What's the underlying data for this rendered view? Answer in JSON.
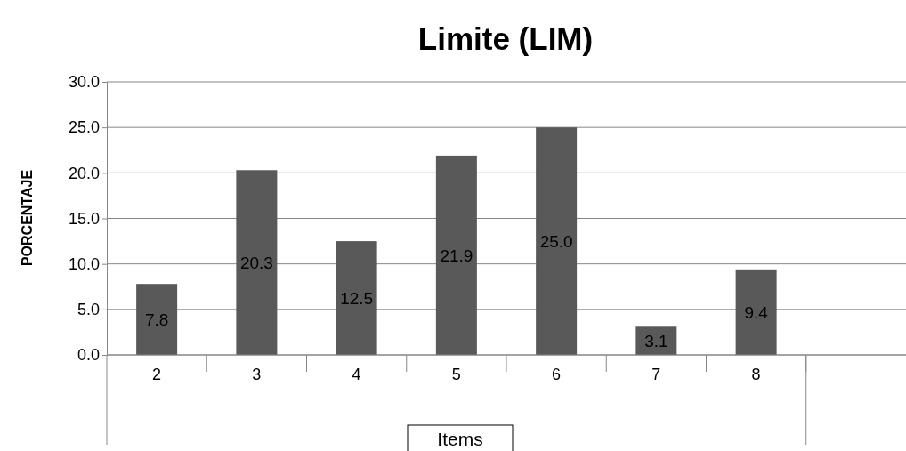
{
  "chart_data": {
    "type": "bar",
    "title": "Limite (LIM)",
    "xlabel": "Items",
    "ylabel": "PORCENTAJE",
    "categories": [
      "2",
      "3",
      "4",
      "5",
      "6",
      "7",
      "8",
      null
    ],
    "values": [
      7.8,
      20.3,
      12.5,
      21.9,
      25.0,
      3.1,
      9.4,
      null
    ],
    "color": "#595959",
    "value_labels": [
      "7.8",
      "20.3",
      "12.5",
      "21.9",
      "25.0",
      "3.1",
      "9.4",
      null
    ],
    "ylim": [
      0,
      30
    ],
    "yticks": [
      {
        "value": 0,
        "label": "0.0"
      },
      {
        "value": 5,
        "label": "5.0"
      },
      {
        "value": 10,
        "label": "10.0"
      },
      {
        "value": 15,
        "label": "15.0"
      },
      {
        "value": 20,
        "label": "20.0"
      },
      {
        "value": 25,
        "label": "25.0"
      },
      {
        "value": 30,
        "label": "30.0"
      }
    ],
    "grid": "y"
  }
}
